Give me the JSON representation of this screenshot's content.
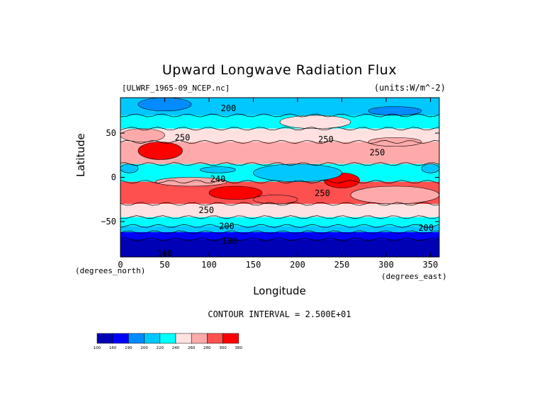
{
  "chart_data": {
    "type": "heatmap",
    "title": "Upward Longwave Radiation Flux",
    "subtitle_left": "[ULWRF_1965-09_NCEP.nc]",
    "subtitle_right": "(units:W/m^-2)",
    "xlabel": "Longitude",
    "ylabel": "Latitude",
    "x_units_label": "(degrees_east)",
    "y_units_label": "(degrees_north)",
    "xlim": [
      0,
      360
    ],
    "ylim": [
      -90,
      90
    ],
    "xticks": [
      0,
      50,
      100,
      150,
      200,
      250,
      300,
      350
    ],
    "yticks": [
      -50,
      0,
      50
    ],
    "contour_interval_text": "CONTOUR INTERVAL = 2.500E+01",
    "contour_labels": [
      {
        "text": "200",
        "x": 122,
        "y": 78
      },
      {
        "text": "250",
        "x": 70,
        "y": 45
      },
      {
        "text": "250",
        "x": 232,
        "y": 43
      },
      {
        "text": "250",
        "x": 290,
        "y": 28
      },
      {
        "text": "240",
        "x": 110,
        "y": -2
      },
      {
        "text": "250",
        "x": 228,
        "y": -18
      },
      {
        "text": "250",
        "x": 97,
        "y": -37
      },
      {
        "text": "200",
        "x": 120,
        "y": -55
      },
      {
        "text": "200",
        "x": 345,
        "y": -57
      },
      {
        "text": "190",
        "x": 123,
        "y": -72
      },
      {
        "text": "160",
        "x": 50,
        "y": -86
      }
    ],
    "color_levels": [
      {
        "label": "100",
        "color": "#0000b4"
      },
      {
        "label": "160",
        "color": "#0000ff"
      },
      {
        "label": "190",
        "color": "#008cff"
      },
      {
        "label": "200",
        "color": "#00c8ff"
      },
      {
        "label": "220",
        "color": "#00ffff"
      },
      {
        "label": "240",
        "color": "#ffe1e1"
      },
      {
        "label": "260",
        "color": "#ffaaaa"
      },
      {
        "label": "280",
        "color": "#ff5050"
      },
      {
        "label": "300",
        "color": "#ff0000"
      },
      {
        "label": "380",
        "color": ""
      }
    ],
    "bands": [
      {
        "lat": [
          70,
          90
        ],
        "value": 205
      },
      {
        "lat": [
          55,
          70
        ],
        "value": 225
      },
      {
        "lat": [
          40,
          55
        ],
        "value": 250
      },
      {
        "lat": [
          15,
          40
        ],
        "value": 275
      },
      {
        "lat": [
          -5,
          15
        ],
        "value": 230
      },
      {
        "lat": [
          -30,
          -5
        ],
        "value": 280
      },
      {
        "lat": [
          -45,
          -30
        ],
        "value": 255
      },
      {
        "lat": [
          -55,
          -45
        ],
        "value": 225
      },
      {
        "lat": [
          -62,
          -55
        ],
        "value": 205
      },
      {
        "lat": [
          -70,
          -62
        ],
        "value": 180
      },
      {
        "lat": [
          -90,
          -70
        ],
        "value": 150
      }
    ],
    "features": [
      {
        "lon": [
          20,
          70
        ],
        "lat": [
          20,
          40
        ],
        "value": 305
      },
      {
        "lon": [
          100,
          160
        ],
        "lat": [
          -25,
          -10
        ],
        "value": 305
      },
      {
        "lon": [
          230,
          270
        ],
        "lat": [
          -12,
          5
        ],
        "value": 305
      },
      {
        "lon": [
          0,
          20
        ],
        "lat": [
          5,
          15
        ],
        "value": 200
      },
      {
        "lon": [
          340,
          360
        ],
        "lat": [
          5,
          15
        ],
        "value": 200
      },
      {
        "lon": [
          150,
          250
        ],
        "lat": [
          -5,
          15
        ],
        "value": 215
      },
      {
        "lon": [
          90,
          130
        ],
        "lat": [
          5,
          12
        ],
        "value": 200
      },
      {
        "lon": [
          20,
          80
        ],
        "lat": [
          75,
          90
        ],
        "value": 195
      },
      {
        "lon": [
          280,
          340
        ],
        "lat": [
          70,
          80
        ],
        "value": 195
      },
      {
        "lon": [
          180,
          260
        ],
        "lat": [
          55,
          70
        ],
        "value": 240
      },
      {
        "lon": [
          0,
          50
        ],
        "lat": [
          40,
          55
        ],
        "value": 270
      },
      {
        "lon": [
          280,
          340
        ],
        "lat": [
          35,
          45
        ],
        "value": 260
      },
      {
        "lon": [
          40,
          120
        ],
        "lat": [
          -10,
          0
        ],
        "value": 265
      },
      {
        "lon": [
          260,
          360
        ],
        "lat": [
          -30,
          -10
        ],
        "value": 270
      },
      {
        "lon": [
          150,
          200
        ],
        "lat": [
          -30,
          -20
        ],
        "value": 285
      }
    ]
  }
}
